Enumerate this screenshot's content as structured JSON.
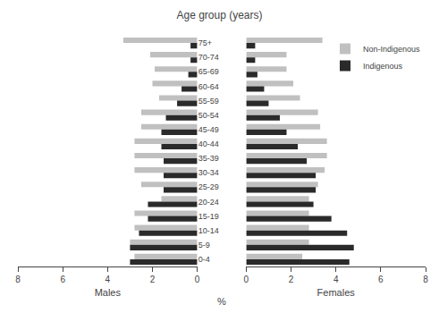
{
  "chart_data": [
    {
      "type": "bar",
      "orientation": "horizontal",
      "title": "Age group (years)",
      "xlabel": "Males",
      "categories": [
        "75+",
        "70-74",
        "65-69",
        "60-64",
        "55-59",
        "50-54",
        "45-49",
        "40-44",
        "35-39",
        "30-34",
        "25-29",
        "20-24",
        "15-19",
        "10-14",
        "5-9",
        "0-4"
      ],
      "series": [
        {
          "name": "Non-Indigenous",
          "color": "#c0c0c0",
          "values": [
            3.3,
            2.1,
            1.9,
            2.0,
            1.7,
            2.5,
            2.5,
            2.8,
            2.8,
            2.8,
            2.5,
            1.6,
            2.8,
            2.8,
            3.0,
            2.8
          ]
        },
        {
          "name": "Indigenous",
          "color": "#2a2a2a",
          "values": [
            0.3,
            0.3,
            0.4,
            0.7,
            0.9,
            1.4,
            1.6,
            1.6,
            1.5,
            1.5,
            1.5,
            2.2,
            2.2,
            2.6,
            3.0,
            3.0
          ]
        }
      ],
      "xlim": [
        8,
        0
      ],
      "xticks": [
        0,
        2,
        4,
        6,
        8
      ],
      "grid": false,
      "annotations": [
        "%"
      ]
    },
    {
      "type": "bar",
      "orientation": "horizontal",
      "xlabel": "Females",
      "categories": [
        "75+",
        "70-74",
        "65-69",
        "60-64",
        "55-59",
        "50-54",
        "45-49",
        "40-44",
        "35-39",
        "30-34",
        "25-29",
        "20-24",
        "15-19",
        "10-14",
        "5-9",
        "0-4"
      ],
      "series": [
        {
          "name": "Non-Indigenous",
          "color": "#c0c0c0",
          "values": [
            3.4,
            1.8,
            1.8,
            2.1,
            2.4,
            3.2,
            3.3,
            3.6,
            3.6,
            3.5,
            3.2,
            2.8,
            2.8,
            2.8,
            2.8,
            2.5
          ]
        },
        {
          "name": "Indigenous",
          "color": "#2a2a2a",
          "values": [
            0.4,
            0.4,
            0.5,
            0.8,
            1.0,
            1.5,
            1.8,
            2.3,
            2.7,
            3.1,
            3.1,
            3.0,
            3.8,
            4.5,
            4.8,
            4.6
          ]
        }
      ],
      "xlim": [
        0,
        8
      ],
      "xticks": [
        0,
        2,
        4,
        6,
        8
      ],
      "grid": false,
      "legend": "upper right"
    }
  ]
}
